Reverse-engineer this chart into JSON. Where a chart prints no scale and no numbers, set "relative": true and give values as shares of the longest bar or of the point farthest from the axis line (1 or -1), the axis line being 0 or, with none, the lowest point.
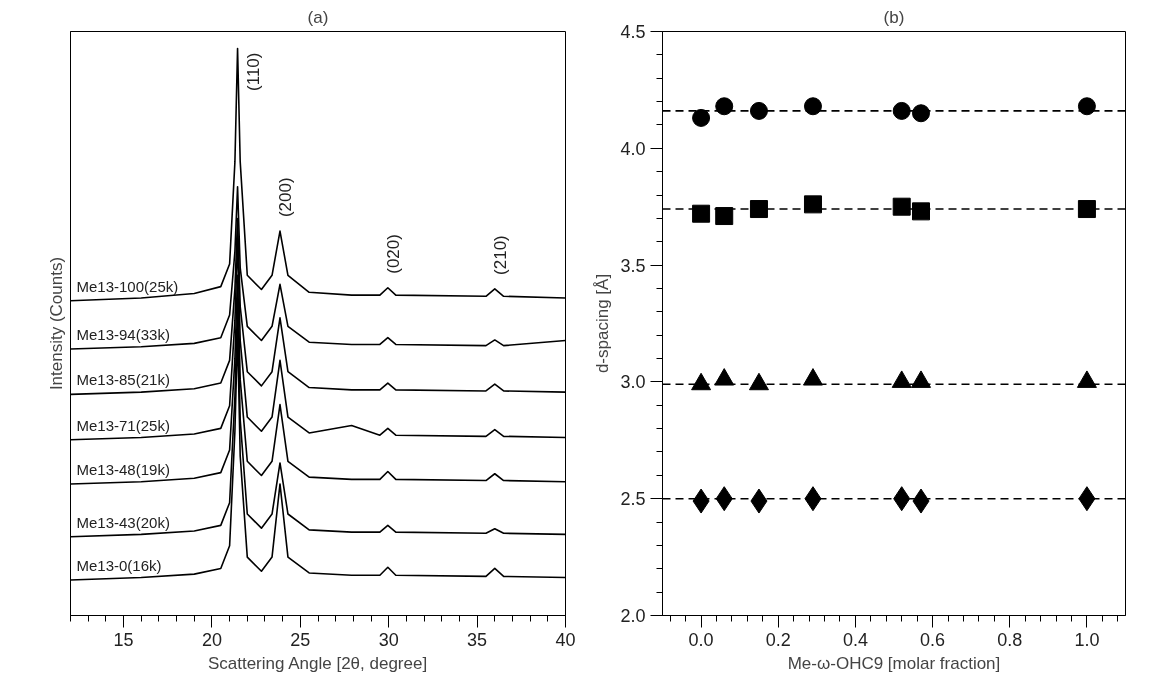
{
  "chart_data": [
    {
      "type": "line",
      "title": "(a)",
      "xlabel": "Scattering Angle [2θ, degree]",
      "ylabel": "Intensity (Counts)",
      "relative": true,
      "xlim": [
        12,
        40
      ],
      "xticks": [
        15,
        20,
        25,
        30,
        35,
        40
      ],
      "grid": false,
      "x": [
        12,
        16,
        19,
        20.5,
        21.0,
        21.3,
        21.45,
        21.6,
        22.0,
        22.8,
        23.4,
        23.85,
        24.3,
        25.5,
        27.9,
        29.5,
        29.95,
        30.4,
        35.5,
        36.0,
        36.5,
        40
      ],
      "series": [
        {
          "name": "Me13-100(25k)",
          "color": "#000000",
          "values": [
            0.555,
            0.56,
            0.568,
            0.58,
            0.62,
            0.8,
            1.0,
            0.8,
            0.6,
            0.575,
            0.6,
            0.678,
            0.6,
            0.57,
            0.565,
            0.565,
            0.578,
            0.565,
            0.563,
            0.576,
            0.563,
            0.56
          ]
        },
        {
          "name": "Me13-94(33k)",
          "color": "#000000",
          "values": [
            0.47,
            0.474,
            0.48,
            0.49,
            0.53,
            0.642,
            0.756,
            0.613,
            0.51,
            0.485,
            0.51,
            0.584,
            0.51,
            0.482,
            0.478,
            0.478,
            0.49,
            0.478,
            0.476,
            0.486,
            0.476,
            0.485
          ]
        },
        {
          "name": "Me13-85(21k)",
          "color": "#000000",
          "values": [
            0.39,
            0.394,
            0.4,
            0.41,
            0.45,
            0.576,
            0.7,
            0.545,
            0.43,
            0.405,
            0.43,
            0.525,
            0.43,
            0.402,
            0.398,
            0.398,
            0.41,
            0.398,
            0.396,
            0.408,
            0.396,
            0.394
          ]
        },
        {
          "name": "Me13-71(25k)",
          "color": "#000000",
          "values": [
            0.31,
            0.314,
            0.32,
            0.33,
            0.37,
            0.52,
            0.66,
            0.485,
            0.35,
            0.325,
            0.35,
            0.45,
            0.35,
            0.322,
            0.335,
            0.318,
            0.33,
            0.318,
            0.316,
            0.328,
            0.316,
            0.314
          ]
        },
        {
          "name": "Me13-48(19k)",
          "color": "#000000",
          "values": [
            0.232,
            0.236,
            0.242,
            0.252,
            0.292,
            0.453,
            0.6,
            0.416,
            0.272,
            0.247,
            0.272,
            0.372,
            0.272,
            0.244,
            0.24,
            0.24,
            0.254,
            0.24,
            0.238,
            0.25,
            0.238,
            0.236
          ]
        },
        {
          "name": "Me13-43(20k)",
          "color": "#000000",
          "values": [
            0.139,
            0.143,
            0.149,
            0.159,
            0.199,
            0.386,
            0.55,
            0.345,
            0.179,
            0.154,
            0.179,
            0.269,
            0.179,
            0.151,
            0.147,
            0.147,
            0.159,
            0.147,
            0.145,
            0.153,
            0.145,
            0.143
          ]
        },
        {
          "name": "Me13-0(16k)",
          "color": "#000000",
          "values": [
            0.0625,
            0.067,
            0.073,
            0.083,
            0.123,
            0.325,
            0.5,
            0.281,
            0.103,
            0.078,
            0.103,
            0.232,
            0.103,
            0.075,
            0.071,
            0.071,
            0.085,
            0.071,
            0.069,
            0.083,
            0.069,
            0.067
          ]
        }
      ],
      "annotations": [
        {
          "text": "(110)",
          "x": 21.45,
          "y": 1.0
        },
        {
          "text": "(200)",
          "x": 23.85,
          "y": 0.678
        },
        {
          "text": "(020)",
          "x": 29.95,
          "y": 0.578
        },
        {
          "text": "(210)",
          "x": 36.0,
          "y": 0.576
        }
      ]
    },
    {
      "type": "scatter",
      "title": "(b)",
      "xlabel": "Me-ω-OHC9 [molar fraction]",
      "ylabel": "d-spacing [Å]",
      "xlim": [
        -0.1,
        1.1
      ],
      "ylim": [
        2.0,
        4.5
      ],
      "grid": false,
      "xticks": [
        {
          "value": 0,
          "label": "0.0"
        },
        0.2,
        0.4,
        0.6,
        0.8,
        {
          "value": 1,
          "label": "1.0"
        }
      ],
      "yticks": [
        {
          "value": 2,
          "label": "2.0"
        },
        2.5,
        {
          "value": 3,
          "label": "3.0"
        },
        3.5,
        {
          "value": 4,
          "label": "4.0"
        },
        4.5
      ],
      "x": [
        0,
        0.06,
        0.15,
        0.29,
        0.52,
        0.57,
        1.0
      ],
      "series": [
        {
          "type": "scatter",
          "marker": "circle",
          "color": "#000000",
          "values": [
            4.13,
            4.18,
            4.16,
            4.18,
            4.16,
            4.15,
            4.18
          ]
        },
        {
          "type": "scatter",
          "marker": "square",
          "color": "#000000",
          "values": [
            3.72,
            3.71,
            3.74,
            3.76,
            3.75,
            3.73,
            3.74
          ]
        },
        {
          "type": "scatter",
          "marker": "triangle",
          "color": "#000000",
          "values": [
            2.99,
            3.01,
            2.99,
            3.01,
            3.0,
            3.0,
            3.0
          ]
        },
        {
          "type": "scatter",
          "marker": "diamond",
          "color": "#000000",
          "values": [
            2.49,
            2.5,
            2.49,
            2.5,
            2.5,
            2.49,
            2.5
          ]
        }
      ],
      "ref_lines": [
        {
          "axis": "y",
          "value": 4.16,
          "color": "#000000",
          "line_style": "dashed"
        },
        {
          "axis": "y",
          "value": 3.74,
          "color": "#000000",
          "line_style": "dashed"
        },
        {
          "axis": "y",
          "value": 2.99,
          "color": "#000000",
          "line_style": "dashed"
        },
        {
          "axis": "y",
          "value": 2.5,
          "color": "#000000",
          "line_style": "dashed"
        }
      ]
    }
  ]
}
